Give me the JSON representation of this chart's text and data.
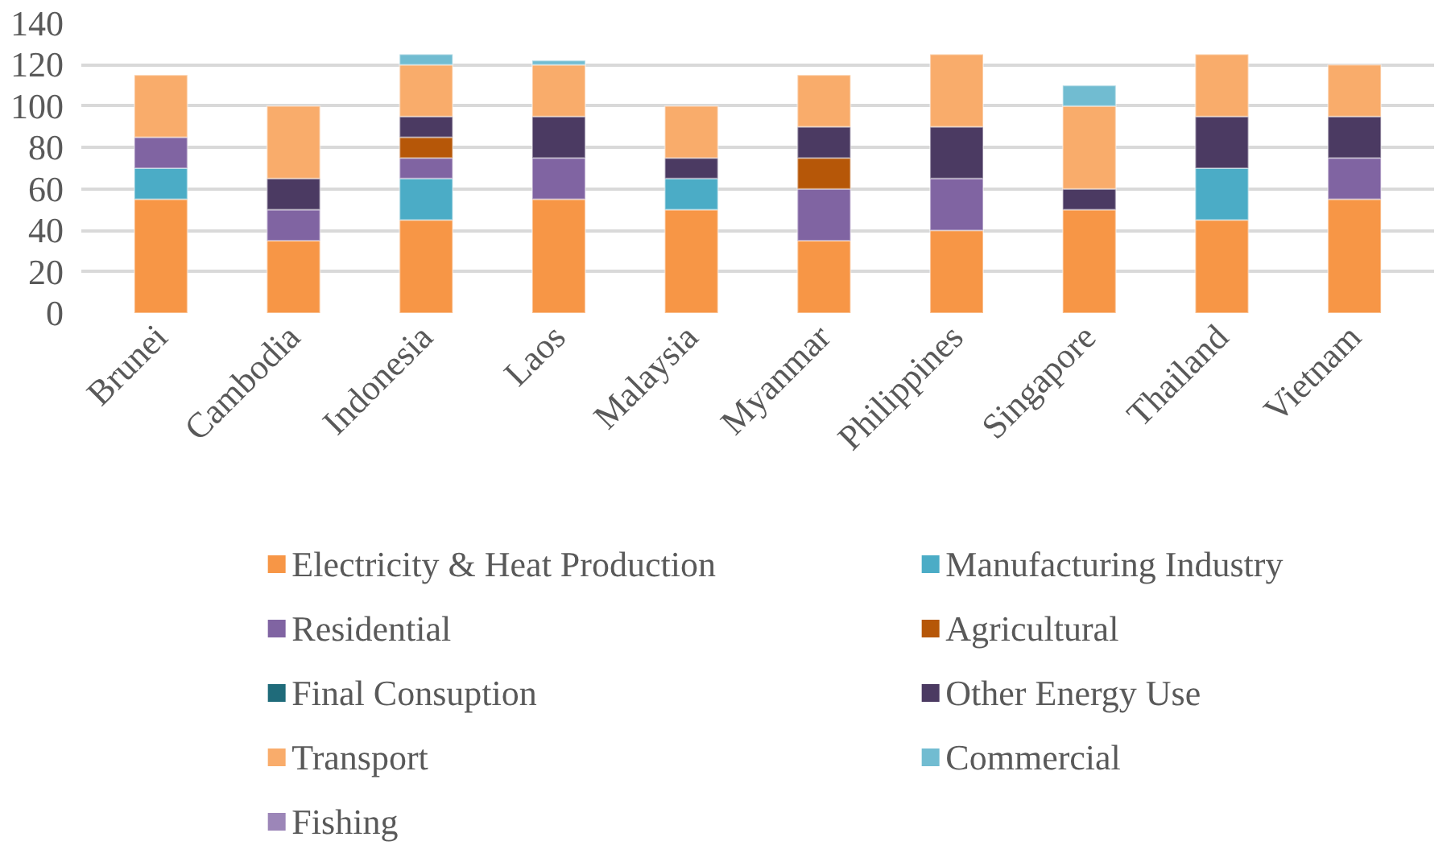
{
  "chart_data": {
    "type": "bar",
    "stacked": true,
    "categories": [
      "Brunei",
      "Cambodia",
      "Indonesia",
      "Laos",
      "Malaysia",
      "Myanmar",
      "Philippines",
      "Singapore",
      "Thailand",
      "Vietnam"
    ],
    "ylim": [
      0,
      140
    ],
    "yticks": [
      0,
      20,
      40,
      60,
      80,
      100,
      120,
      140
    ],
    "grid": "y",
    "legend": "bottom",
    "series": [
      {
        "name": "Electricity & Heat Production",
        "color": "#f79646",
        "values": [
          55,
          35,
          45,
          55,
          50,
          35,
          40,
          50,
          45,
          55
        ]
      },
      {
        "name": "Manufacturing Industry",
        "color": "#4bacc6",
        "values": [
          15,
          null,
          20,
          null,
          15,
          null,
          null,
          null,
          25,
          null
        ]
      },
      {
        "name": "Residential",
        "color": "#8064a2",
        "values": [
          15,
          15,
          10,
          20,
          null,
          25,
          25,
          null,
          null,
          20
        ]
      },
      {
        "name": "Agricultural",
        "color": "#b65708",
        "values": [
          null,
          null,
          10,
          null,
          null,
          15,
          null,
          null,
          null,
          null
        ]
      },
      {
        "name": "Final Consuption",
        "color": "#1f6b7a",
        "values": [
          null,
          null,
          null,
          null,
          null,
          null,
          null,
          null,
          null,
          null
        ]
      },
      {
        "name": "Other Energy Use",
        "color": "#4b3a62",
        "values": [
          null,
          15,
          10,
          20,
          10,
          15,
          25,
          10,
          25,
          20
        ]
      },
      {
        "name": "Transport",
        "color": "#f9ac6b",
        "values": [
          30,
          35,
          25,
          25,
          25,
          25,
          35,
          40,
          30,
          25
        ]
      },
      {
        "name": "Commercial",
        "color": "#71bcd1",
        "values": [
          null,
          null,
          5,
          2,
          null,
          null,
          null,
          10,
          null,
          null
        ]
      },
      {
        "name": "Fishing",
        "color": "#9c86b8",
        "values": [
          null,
          null,
          null,
          null,
          null,
          null,
          null,
          null,
          null,
          null
        ]
      }
    ]
  }
}
